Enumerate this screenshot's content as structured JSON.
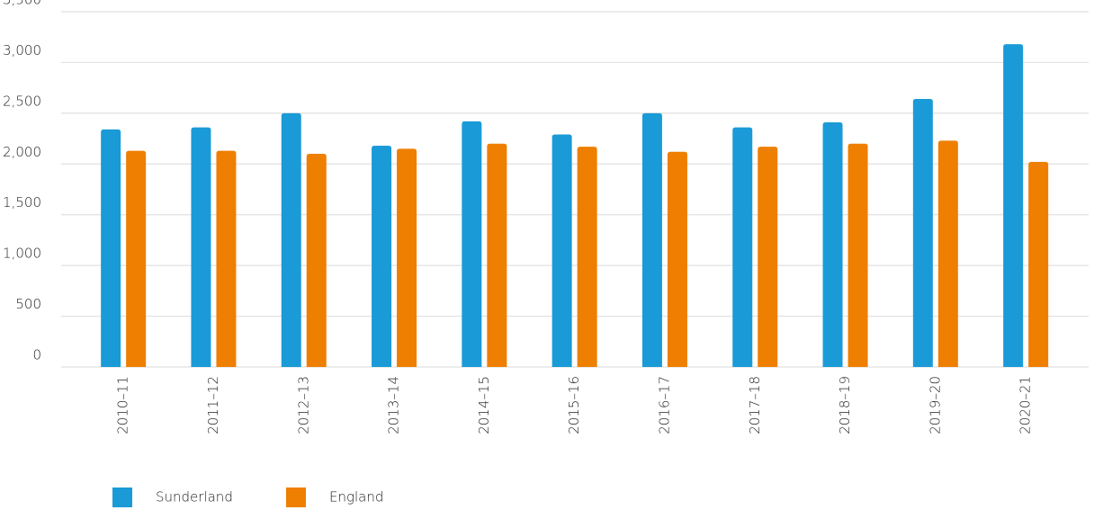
{
  "chart_data": {
    "type": "bar",
    "categories": [
      "2010–11",
      "2011–12",
      "2012–13",
      "2013–14",
      "2014–15",
      "2015–16",
      "2016–17",
      "2017–18",
      "2018–19",
      "2019–20",
      "2020–21"
    ],
    "series": [
      {
        "name": "Sunderland",
        "color": "#1a9bd7",
        "values": [
          2340,
          2360,
          2500,
          2180,
          2420,
          2290,
          2500,
          2360,
          2410,
          2640,
          3180
        ]
      },
      {
        "name": "England",
        "color": "#ee7f00",
        "values": [
          2130,
          2130,
          2100,
          2150,
          2200,
          2170,
          2120,
          2170,
          2200,
          2230,
          2020
        ]
      }
    ],
    "ylim": [
      0,
      3500
    ],
    "yticks": [
      0,
      500,
      {
        "value": 1000,
        "label": "1,000"
      },
      {
        "value": 1500,
        "label": "1,500"
      },
      {
        "value": 2000,
        "label": "2,000"
      },
      {
        "value": 2500,
        "label": "2,500"
      },
      {
        "value": 3000,
        "label": "3,000"
      },
      {
        "value": 3500,
        "label": "3,500"
      }
    ],
    "grid": true,
    "legend": "bottom-left"
  }
}
